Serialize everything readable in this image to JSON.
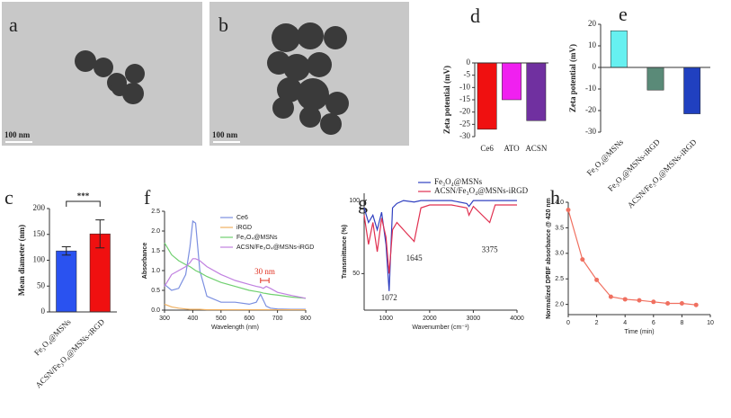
{
  "chart_data": [
    {
      "type": "image",
      "panel": "a",
      "scale_bar": "100 nm"
    },
    {
      "type": "image",
      "panel": "b",
      "scale_bar": "100 nm"
    },
    {
      "type": "bar",
      "panel": "d",
      "y_label": "Zeta potential (mV)",
      "categories": [
        "Ce6",
        "ATO",
        "ACSN"
      ],
      "values": [
        -27,
        -15,
        -23.5
      ],
      "colors": [
        "#f01010",
        "#f020f0",
        "#7030a0"
      ],
      "ylim": [
        -30,
        0
      ],
      "yticks": [
        -30,
        -25,
        -20,
        -15,
        -10,
        -5,
        0
      ]
    },
    {
      "type": "bar",
      "panel": "e",
      "y_label": "Zeta potential (mV)",
      "categories": [
        "Fe₃O₄@MSNs",
        "Fe₃O₄@MSNs-iRGD",
        "ACSN/Fe₃O₄@MSNs-iRGD"
      ],
      "values": [
        17,
        -10.5,
        -21.5
      ],
      "colors": [
        "#66f0f0",
        "#5a8a78",
        "#2040c0"
      ],
      "ylim": [
        -30,
        20
      ],
      "yticks": [
        -30,
        -20,
        -10,
        0,
        10,
        20
      ]
    },
    {
      "type": "bar",
      "panel": "c",
      "y_label": "Mean diameter (nm)",
      "categories": [
        "Fe₃O₄@MSNs",
        "ACSN/Fe₃O₄@MSNs-iRGD"
      ],
      "values": [
        118,
        151
      ],
      "errors": [
        8,
        27
      ],
      "colors": [
        "#2a52f0",
        "#f01010"
      ],
      "significance": "***",
      "ylim": [
        0,
        200
      ],
      "yticks": [
        0,
        50,
        100,
        150,
        200
      ]
    },
    {
      "type": "line",
      "panel": "f",
      "x_label": "Wavelength (nm)",
      "y_label": "Absorbance",
      "legend": "top-right",
      "x": [
        300,
        325,
        350,
        375,
        390,
        400,
        410,
        425,
        450,
        500,
        550,
        600,
        625,
        640,
        650,
        660,
        675,
        700,
        750,
        800
      ],
      "series": [
        {
          "name": "Ce6",
          "color": "#7b8fe0",
          "values": [
            0.65,
            0.5,
            0.55,
            0.9,
            1.6,
            2.25,
            2.2,
            1.0,
            0.35,
            0.2,
            0.2,
            0.15,
            0.2,
            0.4,
            0.25,
            0.1,
            0.05,
            0.03,
            0.02,
            0.02
          ]
        },
        {
          "name": "iRGD",
          "color": "#f0b060",
          "values": [
            0.15,
            0.08,
            0.05,
            0.03,
            0.02,
            0.02,
            0.02,
            0.02,
            0.01,
            0.01,
            0.01,
            0.01,
            0.01,
            0.01,
            0.01,
            0.01,
            0.01,
            0.01,
            0.01,
            0.01
          ]
        },
        {
          "name": "Fe₃O₄@MSNs",
          "color": "#70d070",
          "values": [
            1.7,
            1.4,
            1.25,
            1.15,
            1.1,
            1.05,
            1.0,
            0.95,
            0.85,
            0.7,
            0.6,
            0.5,
            0.47,
            0.45,
            0.43,
            0.42,
            0.4,
            0.38,
            0.33,
            0.3
          ]
        },
        {
          "name": "ACSN/Fe₃O₄@MSNs-iRGD",
          "color": "#c080e0",
          "values": [
            0.6,
            0.9,
            1.0,
            1.1,
            1.2,
            1.3,
            1.3,
            1.25,
            1.1,
            0.9,
            0.75,
            0.65,
            0.6,
            0.58,
            0.55,
            0.6,
            0.55,
            0.45,
            0.37,
            0.3
          ]
        }
      ],
      "annotations": [
        {
          "text": "30 nm",
          "x": [
            640,
            670
          ],
          "y": 0.75
        }
      ],
      "xlim": [
        300,
        800
      ],
      "xticks": [
        300,
        400,
        500,
        600,
        700,
        800
      ],
      "ylim": [
        0,
        2.5
      ],
      "yticks": [
        {
          "value": 0,
          "label": "0.0"
        },
        0.5,
        {
          "value": 1,
          "label": "1.0"
        },
        1.5,
        {
          "value": 2,
          "label": "2.0"
        },
        2.5
      ]
    },
    {
      "type": "line",
      "panel": "g",
      "x_label": "Wavenumber (cm⁻¹)",
      "y_label": "Transmittance (%)",
      "legend": "top",
      "x": [
        500,
        600,
        700,
        800,
        900,
        1000,
        1072,
        1150,
        1250,
        1400,
        1645,
        1800,
        2000,
        2500,
        2850,
        2900,
        3000,
        3375,
        3500,
        4000
      ],
      "series": [
        {
          "name": "Fe₃O₄@MSNs",
          "color": "#3040c0",
          "values": [
            95,
            85,
            90,
            80,
            92,
            70,
            38,
            95,
            98,
            100,
            99,
            100,
            100,
            100,
            98,
            96,
            100,
            100,
            100,
            100
          ]
        },
        {
          "name": "ACSN/Fe₃O₄@MSNs-iRGD",
          "color": "#e03050",
          "values": [
            90,
            70,
            85,
            65,
            88,
            75,
            50,
            80,
            85,
            80,
            72,
            95,
            97,
            97,
            95,
            90,
            96,
            85,
            97,
            97
          ]
        }
      ],
      "annotations": [
        {
          "text": "1072",
          "x": 1072,
          "y": 33
        },
        {
          "text": "1645",
          "x": 1645,
          "y": 60
        },
        {
          "text": "3375",
          "x": 3375,
          "y": 66
        }
      ],
      "xlim": [
        500,
        4000
      ],
      "xticks": [
        1000,
        2000,
        3000,
        4000
      ],
      "ylim": [
        25,
        105
      ],
      "yticks": [
        50,
        100
      ]
    },
    {
      "type": "line",
      "panel": "h",
      "x_label": "Time (min)",
      "y_label": "Normalized DPBF absorbance @ 420 nm",
      "markers": true,
      "x": [
        0,
        1,
        2,
        3,
        4,
        5,
        6,
        7,
        8,
        9
      ],
      "series": [
        {
          "color": "#f07060",
          "values": [
            3.85,
            2.88,
            2.48,
            2.15,
            2.1,
            2.08,
            2.05,
            2.02,
            2.02,
            1.99
          ]
        }
      ],
      "xlim": [
        0,
        10
      ],
      "xticks": [
        0,
        2,
        4,
        6,
        8,
        10
      ],
      "ylim": [
        1.8,
        4.0
      ],
      "yticks": [
        {
          "value": 2,
          "label": "2.0"
        },
        2.5,
        {
          "value": 3,
          "label": "3.0"
        },
        3.5,
        {
          "value": 4,
          "label": "4.0"
        }
      ]
    }
  ]
}
